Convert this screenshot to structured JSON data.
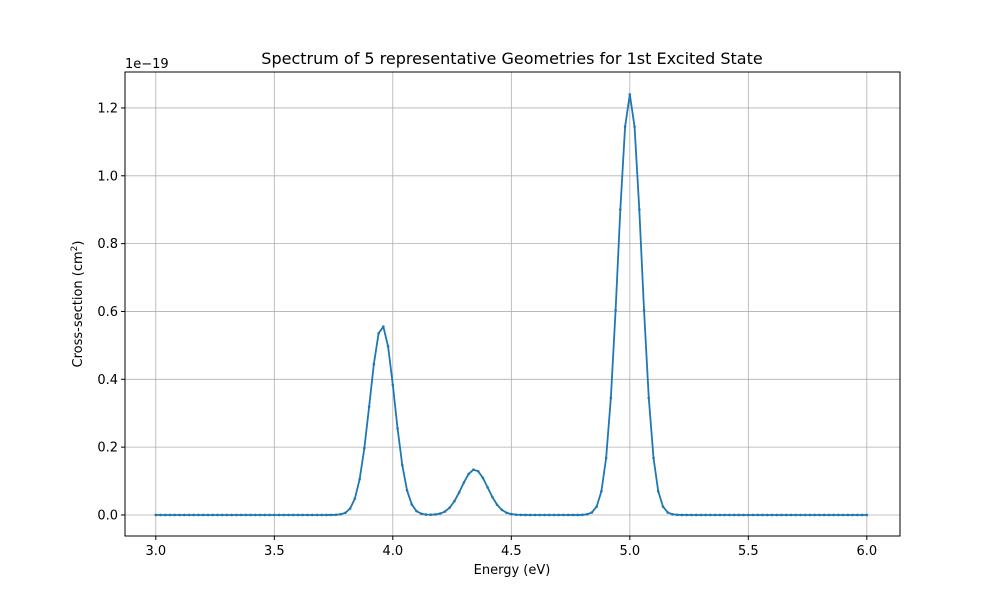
{
  "chart_data": {
    "type": "line",
    "title": "Spectrum of 5 representative Geometries for 1st Excited State",
    "xlabel": "Energy (eV)",
    "ylabel_main": "Cross-section (cm",
    "ylabel_sup": "2",
    "ylabel_end": ")",
    "y_offset_label": "1e−19",
    "xlim": [
      2.87,
      6.14
    ],
    "ylim": [
      -0.062,
      1.306
    ],
    "x_ticks": [
      3.0,
      3.5,
      4.0,
      4.5,
      5.0,
      5.5,
      6.0
    ],
    "x_tick_labels": [
      "3.0",
      "3.5",
      "4.0",
      "4.5",
      "5.0",
      "5.5",
      "6.0"
    ],
    "y_ticks": [
      0.0,
      0.2,
      0.4,
      0.6,
      0.8,
      1.0,
      1.2
    ],
    "y_tick_labels": [
      "0.0",
      "0.2",
      "0.4",
      "0.6",
      "0.8",
      "1.0",
      "1.2"
    ],
    "grid": true,
    "color": "#1f77b4",
    "series": [
      {
        "x_start": 3.0,
        "x_end": 6.0,
        "x_step": 0.02,
        "peaks": [
          {
            "center": 3.955,
            "height": 0.558,
            "sigma": 0.052
          },
          {
            "center": 4.345,
            "height": 0.134,
            "sigma": 0.055
          },
          {
            "center": 5.0,
            "height": 1.24,
            "sigma": 0.05
          }
        ]
      }
    ]
  }
}
